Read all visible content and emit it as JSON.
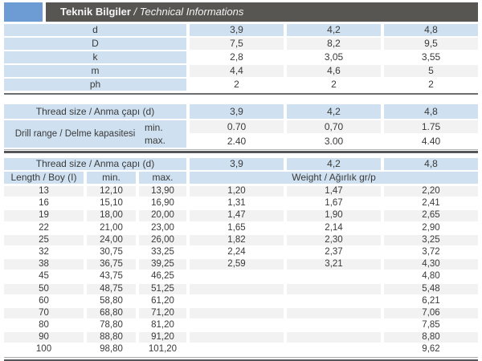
{
  "header": {
    "title_tr": "Teknik Bilgiler",
    "title_sep": " / ",
    "title_en": "Technical Informations"
  },
  "colors": {
    "logo_blue": "#6d9cd4",
    "header_bar": "#585653",
    "cell_blue": "#cfe1f1",
    "cell_gray": "#f2f2f3",
    "rule_dark": "#54565a",
    "text": "#3a3a3a"
  },
  "spec_table": {
    "rows": [
      {
        "label": "d",
        "values": [
          "3,9",
          "4,2",
          "4,8"
        ]
      },
      {
        "label": "D",
        "values": [
          "7,5",
          "8,2",
          "9,5"
        ]
      },
      {
        "label": "k",
        "values": [
          "2,8",
          "3,05",
          "3,55"
        ]
      },
      {
        "label": "m",
        "values": [
          "4,4",
          "4,6",
          "5"
        ]
      },
      {
        "label": "ph",
        "values": [
          "2",
          "2",
          "2"
        ]
      }
    ]
  },
  "drill_table": {
    "thread_label": "Thread size / Anma çapı (d)",
    "thread_values": [
      "3,9",
      "4,2",
      "4,8"
    ],
    "drill_label": "Drill range / Delme kapasitesi",
    "min_label": "min.",
    "max_label": "max.",
    "min_values": [
      "0.70",
      "0,70",
      "1.75"
    ],
    "max_values": [
      "2.40",
      "3.00",
      "4.40"
    ]
  },
  "weight_table": {
    "thread_label": "Thread size / Anma çapı (d)",
    "thread_values": [
      "3,9",
      "4,2",
      "4,8"
    ],
    "length_label": "Length / Boy (I)",
    "min_label": "min.",
    "max_label": "max.",
    "weight_label": "Weight / Ağırlık gr/p",
    "rows": [
      {
        "length": "13",
        "min": "12,10",
        "max": "13,90",
        "weights": [
          "1,20",
          "1,47",
          "2,20"
        ]
      },
      {
        "length": "16",
        "min": "15,10",
        "max": "16,90",
        "weights": [
          "1,31",
          "1,67",
          "2,41"
        ]
      },
      {
        "length": "19",
        "min": "18,00",
        "max": "20,00",
        "weights": [
          "1,47",
          "1,90",
          "2,65"
        ]
      },
      {
        "length": "22",
        "min": "21,00",
        "max": "23,00",
        "weights": [
          "1,65",
          "2,14",
          "2,90"
        ]
      },
      {
        "length": "25",
        "min": "24,00",
        "max": "26,00",
        "weights": [
          "1,82",
          "2,30",
          "3,25"
        ]
      },
      {
        "length": "32",
        "min": "30,75",
        "max": "33,25",
        "weights": [
          "2,24",
          "2,37",
          "3,72"
        ]
      },
      {
        "length": "38",
        "min": "36,75",
        "max": "39,25",
        "weights": [
          "2,59",
          "3,21",
          "4,30"
        ]
      },
      {
        "length": "45",
        "min": "43,75",
        "max": "46,25",
        "weights": [
          "",
          "",
          "4,80"
        ]
      },
      {
        "length": "50",
        "min": "48,75",
        "max": "51,25",
        "weights": [
          "",
          "",
          "5,48"
        ]
      },
      {
        "length": "60",
        "min": "58,80",
        "max": "61,20",
        "weights": [
          "",
          "",
          "6,21"
        ]
      },
      {
        "length": "70",
        "min": "68,80",
        "max": "71,20",
        "weights": [
          "",
          "",
          "7,06"
        ]
      },
      {
        "length": "80",
        "min": "78,80",
        "max": "81,20",
        "weights": [
          "",
          "",
          "7,85"
        ]
      },
      {
        "length": "90",
        "min": "88,80",
        "max": "91,20",
        "weights": [
          "",
          "",
          "8,80"
        ]
      },
      {
        "length": "100",
        "min": "98,80",
        "max": "101,20",
        "weights": [
          "",
          "",
          "9,62"
        ]
      }
    ]
  }
}
